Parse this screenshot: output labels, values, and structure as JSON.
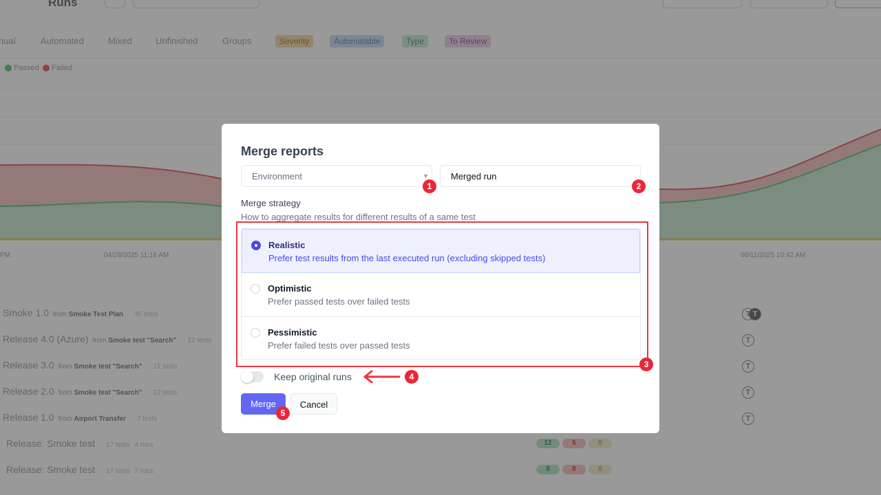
{
  "background": {
    "breadcrumb_current": "Runs",
    "tabs": [
      "nual",
      "Automated",
      "Mixed",
      "Unfinished",
      "Groups"
    ],
    "filter_pills": [
      {
        "label": "Severity",
        "color": "#f5deb3"
      },
      {
        "label": "Automatable",
        "color": "#cfe0f7"
      },
      {
        "label": "Type",
        "color": "#d4ecdc"
      },
      {
        "label": "To Review",
        "color": "#ecd7ec"
      }
    ],
    "legend": {
      "passed": "Passed",
      "failed": "Failed",
      "passed_color": "#6fcf8f",
      "failed_color": "#e57373"
    },
    "x_labels": [
      "PM",
      "04/28/2025 11:16 AM",
      "06/11/2025 10:42 AM"
    ],
    "runs": [
      {
        "name": "Smoke 1.0",
        "from": "from",
        "plan": "Smoke Test Plan",
        "tests": "30 tests"
      },
      {
        "name": "Release 4.0 (Azure)",
        "from": "from",
        "plan": "Smoke test \"Search\"",
        "tests": "12 tests"
      },
      {
        "name": "Release 3.0",
        "from": "from",
        "plan": "Smoke test \"Search\"",
        "tests": "12 tests"
      },
      {
        "name": "Release 2.0",
        "from": "from",
        "plan": "Smoke test \"Search\"",
        "tests": "12 tests"
      },
      {
        "name": "Release 1.0",
        "from": "from",
        "plan": "Airport Transfer",
        "tests": "7 tests"
      }
    ],
    "groups": [
      {
        "name": "Release: Smoke test",
        "tests": "17 tests",
        "runs": "4 runs",
        "passed": "12",
        "failed": "5",
        "other": "0"
      },
      {
        "name": "Release: Smoke test",
        "tests": "17 tests",
        "runs": "7 runs",
        "passed": "9",
        "failed": "8",
        "other": "0"
      }
    ]
  },
  "modal": {
    "title": "Merge reports",
    "environment_placeholder": "Environment",
    "name_value": "Merged run",
    "strategy_label": "Merge strategy",
    "strategy_desc": "How to aggregate results for different results of a same test",
    "options": [
      {
        "name": "Realistic",
        "desc": "Prefer test results from the last executed run (excluding skipped tests)",
        "selected": true
      },
      {
        "name": "Optimistic",
        "desc": "Prefer passed tests over failed tests",
        "selected": false
      },
      {
        "name": "Pessimistic",
        "desc": "Prefer failed tests over passed tests",
        "selected": false
      }
    ],
    "keep_original_label": "Keep original runs",
    "keep_original_on": false,
    "merge_label": "Merge",
    "cancel_label": "Cancel"
  },
  "annotations": [
    "1",
    "2",
    "3",
    "4",
    "5"
  ],
  "annotation_color": "#e8283a"
}
